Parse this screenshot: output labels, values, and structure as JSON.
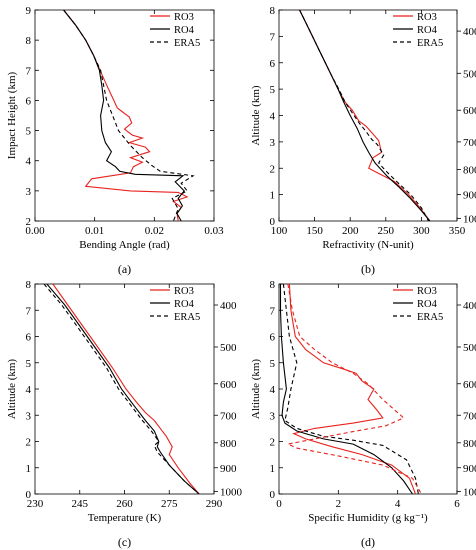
{
  "chart_data": [
    {
      "type": "line",
      "panel_label": "(a)",
      "xlabel": "Bending Angle (rad)",
      "ylabel": "Impact Height (km)",
      "xlim": [
        0.0,
        0.03
      ],
      "ylim": [
        2,
        9
      ],
      "xticks": [
        0.0,
        0.01,
        0.02,
        0.03
      ],
      "xtick_labels": [
        "0.00",
        "0.01",
        "0.02",
        "0.03"
      ],
      "yticks": [
        2,
        3,
        4,
        5,
        6,
        7,
        8,
        9
      ],
      "ytick_labels": [
        "2",
        "3",
        "4",
        "5",
        "6",
        "7",
        "8",
        "9"
      ],
      "legend_position": "top-right",
      "series": [
        {
          "name": "RO3",
          "color": "#e8231f",
          "dash": "solid",
          "x": [
            0.0048,
            0.0068,
            0.0085,
            0.0098,
            0.0109,
            0.0118,
            0.0125,
            0.0132,
            0.0138,
            0.0148,
            0.0158,
            0.0162,
            0.015,
            0.0163,
            0.018,
            0.0158,
            0.0185,
            0.0192,
            0.016,
            0.018,
            0.0165,
            0.016,
            0.0095,
            0.0085,
            0.016,
            0.024,
            0.0255,
            0.0232,
            0.0245,
            0.0238,
            0.024
          ],
          "y": [
            9.0,
            8.5,
            8.0,
            7.5,
            7.0,
            6.6,
            6.3,
            6.0,
            5.75,
            5.6,
            5.45,
            5.25,
            5.05,
            4.85,
            4.75,
            4.6,
            4.45,
            4.3,
            4.1,
            3.95,
            3.8,
            3.6,
            3.4,
            3.15,
            3.0,
            2.95,
            2.8,
            2.65,
            2.45,
            2.25,
            2.0
          ]
        },
        {
          "name": "RO4",
          "color": "#000000",
          "dash": "solid",
          "x": [
            0.0048,
            0.0068,
            0.0085,
            0.0098,
            0.0108,
            0.0112,
            0.0115,
            0.011,
            0.0112,
            0.0118,
            0.0128,
            0.012,
            0.0135,
            0.0142,
            0.0168,
            0.0248,
            0.0235,
            0.025,
            0.024,
            0.0247,
            0.0238,
            0.0245
          ],
          "y": [
            9.0,
            8.5,
            8.0,
            7.5,
            7.0,
            6.5,
            6.0,
            5.5,
            5.0,
            4.6,
            4.3,
            4.0,
            3.8,
            3.65,
            3.55,
            3.5,
            3.3,
            3.0,
            2.75,
            2.5,
            2.25,
            2.0
          ]
        },
        {
          "name": "ERA5",
          "color": "#000000",
          "dash": "4,3",
          "x": [
            0.0048,
            0.0068,
            0.0085,
            0.0098,
            0.011,
            0.0115,
            0.012,
            0.013,
            0.014,
            0.016,
            0.018,
            0.0195,
            0.021,
            0.0265,
            0.0245,
            0.0255,
            0.023,
            0.024,
            0.0232
          ],
          "y": [
            9.0,
            8.5,
            8.0,
            7.5,
            7.0,
            6.5,
            6.0,
            5.5,
            5.0,
            4.5,
            4.1,
            3.85,
            3.65,
            3.5,
            3.25,
            3.0,
            2.75,
            2.4,
            2.0
          ]
        }
      ]
    },
    {
      "type": "line",
      "panel_label": "(b)",
      "xlabel": "Refractivity (N-unit)",
      "ylabel": "Altitude (km)",
      "xlim": [
        100,
        350
      ],
      "ylim": [
        0,
        8
      ],
      "xticks": [
        100,
        150,
        200,
        250,
        300,
        350
      ],
      "xtick_labels": [
        "100",
        "150",
        "200",
        "250",
        "300",
        "350"
      ],
      "yticks": [
        0,
        1,
        2,
        3,
        4,
        5,
        6,
        7,
        8
      ],
      "ytick_labels": [
        "0",
        "1",
        "2",
        "3",
        "4",
        "5",
        "6",
        "7",
        "8"
      ],
      "right_ticks": [
        400,
        500,
        600,
        700,
        800,
        900,
        1000
      ],
      "right_ticks_altitude_km": [
        7.2,
        5.6,
        4.2,
        3.0,
        1.95,
        1.0,
        0.1
      ],
      "legend_position": "top-right",
      "series": [
        {
          "name": "RO3",
          "color": "#e8231f",
          "dash": "solid",
          "x": [
            129,
            138,
            147,
            156,
            165,
            174,
            183,
            193,
            203,
            212,
            222,
            232,
            240,
            244,
            232,
            226,
            240,
            262,
            282,
            298,
            312
          ],
          "y": [
            8.0,
            7.5,
            7.0,
            6.5,
            6.0,
            5.5,
            5.0,
            4.5,
            4.2,
            3.8,
            3.6,
            3.3,
            3.05,
            2.6,
            2.4,
            2.0,
            1.8,
            1.5,
            1.0,
            0.5,
            0.0
          ]
        },
        {
          "name": "RO4",
          "color": "#000000",
          "dash": "solid",
          "x": [
            129,
            138,
            147,
            156,
            165,
            174,
            183,
            191,
            200,
            210,
            218,
            226,
            235,
            252,
            268,
            283,
            298,
            312
          ],
          "y": [
            8.0,
            7.5,
            7.0,
            6.5,
            6.0,
            5.5,
            5.0,
            4.5,
            4.0,
            3.5,
            3.0,
            2.6,
            2.2,
            1.7,
            1.3,
            0.9,
            0.45,
            0.0
          ]
        },
        {
          "name": "ERA5",
          "color": "#000000",
          "dash": "4,3",
          "x": [
            129,
            138,
            147,
            156,
            165,
            174,
            184,
            193,
            203,
            213,
            222,
            230,
            238,
            247,
            240,
            250,
            265,
            285,
            300,
            310
          ],
          "y": [
            8.0,
            7.5,
            7.0,
            6.5,
            6.0,
            5.5,
            5.0,
            4.5,
            4.1,
            3.7,
            3.4,
            3.1,
            2.9,
            2.5,
            2.2,
            1.9,
            1.5,
            1.0,
            0.5,
            0.0
          ]
        }
      ]
    },
    {
      "type": "line",
      "panel_label": "(c)",
      "xlabel": "Temperature (K)",
      "ylabel": "Altitude (km)",
      "xlim": [
        230,
        290
      ],
      "ylim": [
        0,
        8
      ],
      "xticks": [
        230,
        245,
        260,
        275,
        290
      ],
      "xtick_labels": [
        "230",
        "245",
        "260",
        "275",
        "290"
      ],
      "yticks": [
        0,
        1,
        2,
        3,
        4,
        5,
        6,
        7,
        8
      ],
      "ytick_labels": [
        "0",
        "1",
        "2",
        "3",
        "4",
        "5",
        "6",
        "7",
        "8"
      ],
      "right_ticks": [
        400,
        500,
        600,
        700,
        800,
        900,
        1000
      ],
      "right_ticks_altitude_km": [
        7.2,
        5.6,
        4.2,
        3.0,
        1.95,
        1.0,
        0.1
      ],
      "legend_position": "top-right",
      "series": [
        {
          "name": "RO3",
          "color": "#e8231f",
          "dash": "solid",
          "x": [
            236,
            241,
            246,
            251,
            256,
            260.5,
            264,
            267,
            270,
            272,
            274,
            276,
            275,
            278,
            282,
            285
          ],
          "y": [
            8.0,
            7.2,
            6.4,
            5.6,
            4.8,
            4.0,
            3.5,
            3.1,
            2.8,
            2.5,
            2.2,
            1.8,
            1.5,
            1.0,
            0.4,
            0.0
          ]
        },
        {
          "name": "RO4",
          "color": "#000000",
          "dash": "solid",
          "x": [
            234,
            240,
            245,
            250,
            255,
            259,
            263,
            267,
            270,
            271.5,
            271,
            272,
            275,
            280,
            285
          ],
          "y": [
            8.0,
            7.2,
            6.4,
            5.6,
            4.8,
            4.0,
            3.4,
            2.8,
            2.4,
            2.0,
            1.8,
            1.6,
            1.1,
            0.5,
            0.0
          ]
        },
        {
          "name": "ERA5",
          "color": "#000000",
          "dash": "4,3",
          "x": [
            233,
            239,
            244,
            249,
            254,
            258,
            262,
            266,
            269,
            271.5,
            270,
            271,
            275,
            280,
            285
          ],
          "y": [
            8.0,
            7.2,
            6.4,
            5.6,
            4.8,
            4.0,
            3.4,
            2.8,
            2.4,
            2.0,
            1.85,
            1.6,
            1.1,
            0.5,
            0.0
          ]
        }
      ]
    },
    {
      "type": "line",
      "panel_label": "(d)",
      "xlabel": "Specific Humidity (g kg⁻¹)",
      "ylabel": "Altitude (km)",
      "xlim": [
        0,
        6
      ],
      "ylim": [
        0,
        8
      ],
      "xticks": [
        0,
        2,
        4,
        6
      ],
      "xtick_labels": [
        "0",
        "2",
        "4",
        "6"
      ],
      "yticks": [
        0,
        1,
        2,
        3,
        4,
        5,
        6,
        7,
        8
      ],
      "ytick_labels": [
        "0",
        "1",
        "2",
        "3",
        "4",
        "5",
        "6",
        "7",
        "8"
      ],
      "right_ticks": [
        400,
        500,
        600,
        700,
        800,
        900,
        1000
      ],
      "right_ticks_altitude_km": [
        7.2,
        5.6,
        4.2,
        3.0,
        1.95,
        1.0,
        0.1
      ],
      "legend_position": "top-right",
      "series": [
        {
          "name": "RO3",
          "color": "#e8231f",
          "dash": "solid",
          "x": [
            0.35,
            0.4,
            0.55,
            0.9,
            1.5,
            2.2,
            2.6,
            2.8,
            3.2,
            3.0,
            3.3,
            3.5,
            2.5,
            1.2,
            0.5,
            0.9,
            1.8,
            2.8,
            3.8,
            4.4,
            4.6
          ],
          "y": [
            8.0,
            7.0,
            6.0,
            5.5,
            5.0,
            4.75,
            4.6,
            4.3,
            4.0,
            3.6,
            3.2,
            2.9,
            2.7,
            2.5,
            2.3,
            2.1,
            1.8,
            1.5,
            1.1,
            0.6,
            0.0
          ]
        },
        {
          "name": "RO4",
          "color": "#000000",
          "dash": "solid",
          "x": [
            0.05,
            0.05,
            0.08,
            0.15,
            0.25,
            0.15,
            0.1,
            0.2,
            0.6,
            1.5,
            2.5,
            3.2,
            3.8,
            4.2,
            4.5
          ],
          "y": [
            8.0,
            7.0,
            6.0,
            5.0,
            4.0,
            3.5,
            3.0,
            2.7,
            2.4,
            2.1,
            1.9,
            1.5,
            1.0,
            0.5,
            0.0
          ]
        },
        {
          "name": "ERA5",
          "color": "#000000",
          "dash": "4,3",
          "x": [
            0.15,
            0.25,
            0.35,
            0.6,
            0.4,
            0.3,
            0.2,
            0.6,
            1.5,
            2.5,
            3.5,
            4.3,
            4.6,
            4.7
          ],
          "y": [
            8.0,
            7.0,
            6.0,
            5.0,
            4.0,
            3.3,
            2.8,
            2.5,
            2.2,
            2.05,
            1.85,
            1.3,
            0.6,
            0.0
          ]
        },
        {
          "name": "RO3",
          "color": "#e8231f",
          "dash": "4,3",
          "legend": false,
          "x": [
            0.3,
            0.45,
            0.7,
            1.2,
            1.8,
            2.5,
            3.0,
            3.5,
            4.2,
            3.6,
            2.6,
            1.2,
            0.3,
            0.6,
            2.0,
            3.5,
            4.5,
            4.8
          ],
          "y": [
            8.0,
            7.0,
            6.0,
            5.5,
            5.0,
            4.6,
            4.2,
            3.6,
            2.9,
            2.6,
            2.4,
            2.1,
            1.9,
            1.75,
            1.45,
            1.1,
            0.6,
            0.0
          ]
        }
      ]
    }
  ]
}
